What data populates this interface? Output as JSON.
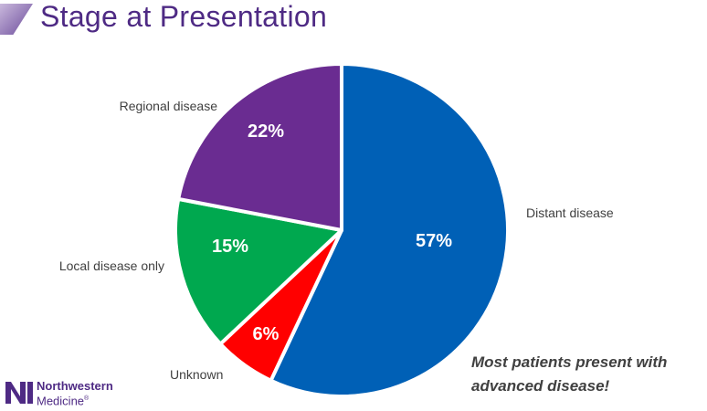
{
  "title": "Stage at Presentation",
  "callout": {
    "line1": "Most patients present with",
    "line2": "advanced disease!"
  },
  "logo": {
    "line1": "Northwestern",
    "line2": "Medicine",
    "mark": "®"
  },
  "colors": {
    "title": "#4e2a84",
    "distant": "#0060b6",
    "unknown": "#ff0000",
    "local": "#00a84f",
    "regional": "#6a2c91"
  },
  "chart_data": {
    "type": "pie",
    "title": "Stage at Presentation",
    "start_angle_deg": 0,
    "direction": "clockwise",
    "slices": [
      {
        "label": "Distant disease",
        "value": 57,
        "display": "57%",
        "color": "#0060b6"
      },
      {
        "label": "Unknown",
        "value": 6,
        "display": "6%",
        "color": "#ff0000"
      },
      {
        "label": "Local disease only",
        "value": 15,
        "display": "15%",
        "color": "#00a84f"
      },
      {
        "label": "Regional disease",
        "value": 22,
        "display": "22%",
        "color": "#6a2c91"
      }
    ]
  }
}
